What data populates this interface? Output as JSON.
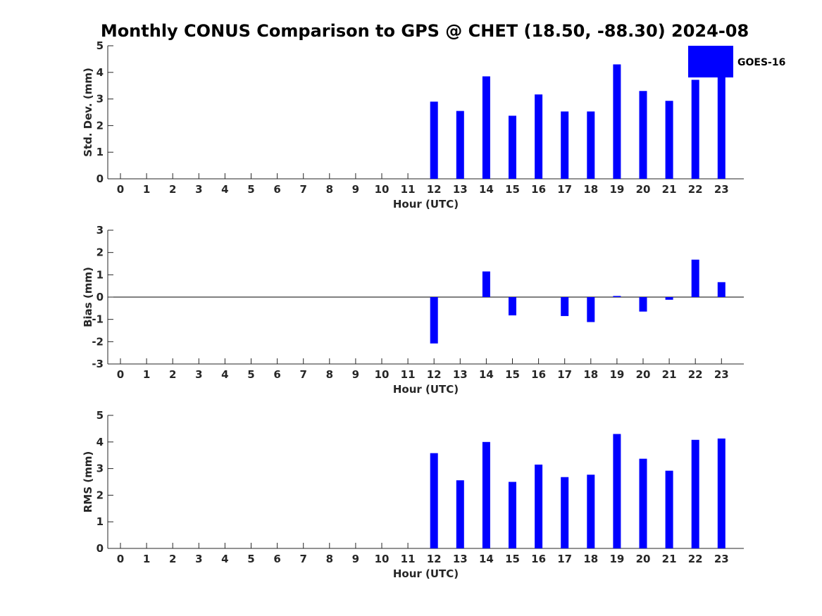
{
  "title": "Monthly CONUS Comparison to GPS @ CHET (18.50, -88.30) 2024-08",
  "legend": {
    "label": "GOES-16",
    "color": "#0000ff",
    "placement": "top-right"
  },
  "chart_data": [
    {
      "type": "bar",
      "name": "stddev",
      "ylabel": "Std. Dev. (mm)",
      "xlabel": "Hour (UTC)",
      "ylim": [
        0,
        5
      ],
      "yticks": [
        0,
        1,
        2,
        3,
        4,
        5
      ],
      "categories": [
        0,
        1,
        2,
        3,
        4,
        5,
        6,
        7,
        8,
        9,
        10,
        11,
        12,
        13,
        14,
        15,
        16,
        17,
        18,
        19,
        20,
        21,
        22,
        23
      ],
      "values": [
        null,
        null,
        null,
        null,
        null,
        null,
        null,
        null,
        null,
        null,
        null,
        null,
        2.9,
        2.55,
        3.85,
        2.37,
        3.17,
        2.53,
        2.53,
        4.3,
        3.3,
        2.93,
        3.72,
        3.85
      ],
      "series": [
        {
          "name": "GOES-16"
        }
      ],
      "zero_line": false
    },
    {
      "type": "bar",
      "name": "bias",
      "ylabel": "Bias (mm)",
      "xlabel": "Hour (UTC)",
      "ylim": [
        -3,
        3
      ],
      "yticks": [
        -3,
        -2,
        -1,
        0,
        1,
        2,
        3
      ],
      "categories": [
        0,
        1,
        2,
        3,
        4,
        5,
        6,
        7,
        8,
        9,
        10,
        11,
        12,
        13,
        14,
        15,
        16,
        17,
        18,
        19,
        20,
        21,
        22,
        23
      ],
      "values": [
        null,
        null,
        null,
        null,
        null,
        null,
        null,
        null,
        null,
        null,
        null,
        null,
        -2.08,
        0,
        1.15,
        -0.82,
        0,
        -0.85,
        -1.12,
        0.05,
        -0.65,
        -0.12,
        1.68,
        0.67
      ],
      "series": [
        {
          "name": "GOES-16"
        }
      ],
      "zero_line": true
    },
    {
      "type": "bar",
      "name": "rms",
      "ylabel": "RMS (mm)",
      "xlabel": "Hour (UTC)",
      "ylim": [
        0,
        5
      ],
      "yticks": [
        0,
        1,
        2,
        3,
        4,
        5
      ],
      "categories": [
        0,
        1,
        2,
        3,
        4,
        5,
        6,
        7,
        8,
        9,
        10,
        11,
        12,
        13,
        14,
        15,
        16,
        17,
        18,
        19,
        20,
        21,
        22,
        23
      ],
      "values": [
        null,
        null,
        null,
        null,
        null,
        null,
        null,
        null,
        null,
        null,
        null,
        null,
        3.58,
        2.56,
        4.0,
        2.5,
        3.15,
        2.68,
        2.77,
        4.3,
        3.37,
        2.92,
        4.08,
        4.13
      ],
      "series": [
        {
          "name": "GOES-16"
        }
      ],
      "zero_line": false
    }
  ]
}
